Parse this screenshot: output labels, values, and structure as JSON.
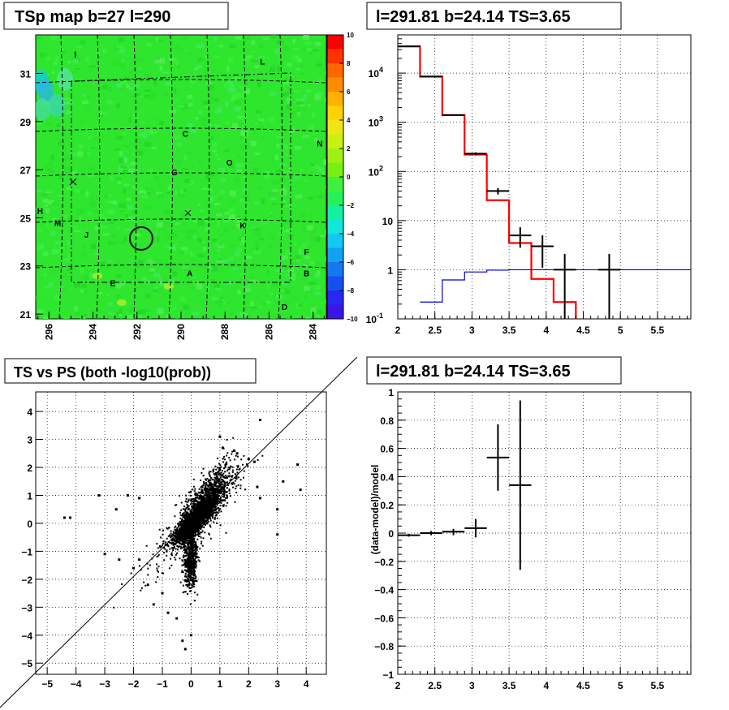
{
  "chart_data": [
    {
      "type": "heatmap",
      "title": "TSp map b=27 l=290",
      "x_ticks": [
        "296",
        "294",
        "292",
        "290",
        "288",
        "286",
        "284"
      ],
      "y_ticks": [
        "21",
        "23",
        "25",
        "27",
        "29",
        "31"
      ],
      "xlim": [
        296.6,
        283.4
      ],
      "ylim": [
        20.8,
        32.6
      ],
      "zlim": [
        -10,
        10
      ],
      "colorbar_ticks": [
        "10",
        "8",
        "6",
        "4",
        "2",
        "0",
        "−2",
        "−4",
        "−6",
        "−8",
        "−10"
      ],
      "source_labels": [
        {
          "text": "I",
          "l": 294.8,
          "b": 31.8
        },
        {
          "text": "L",
          "l": 286.3,
          "b": 31.5
        },
        {
          "text": "C",
          "l": 289.8,
          "b": 28.5
        },
        {
          "text": "O",
          "l": 287.8,
          "b": 27.3
        },
        {
          "text": "N",
          "l": 283.7,
          "b": 28.1
        },
        {
          "text": "G",
          "l": 290.3,
          "b": 26.9
        },
        {
          "text": "H",
          "l": 296.4,
          "b": 25.3
        },
        {
          "text": "M",
          "l": 295.6,
          "b": 24.8
        },
        {
          "text": "J",
          "l": 294.3,
          "b": 24.3
        },
        {
          "text": "K",
          "l": 287.2,
          "b": 24.7
        },
        {
          "text": "F",
          "l": 284.3,
          "b": 23.6
        },
        {
          "text": "A",
          "l": 289.6,
          "b": 22.7
        },
        {
          "text": "B",
          "l": 284.3,
          "b": 22.7
        },
        {
          "text": "E",
          "l": 293.1,
          "b": 22.3
        },
        {
          "text": "D",
          "l": 285.3,
          "b": 21.3
        }
      ],
      "target": {
        "l": 291.81,
        "b": 24.14
      }
    },
    {
      "type": "line",
      "title": "l=291.81 b=24.14 TS=3.65",
      "x_ticks": [
        "2",
        "2.5",
        "3",
        "3.5",
        "4",
        "4.5",
        "5",
        "5.5"
      ],
      "y_ticks": [
        "10^-1",
        "1",
        "10",
        "10^2",
        "10^3",
        "10^4"
      ],
      "xlim": [
        2,
        5.95
      ],
      "ylim": [
        0.1,
        60000
      ],
      "log_y": true,
      "series": [
        {
          "kind": "step",
          "color": "#ff0000",
          "edges": [
            2.0,
            2.3,
            2.6,
            2.9,
            3.2,
            3.5,
            3.8,
            4.1,
            4.4
          ],
          "values": [
            35000,
            8500,
            1400,
            220,
            26,
            3.5,
            0.65,
            0.22,
            0.08
          ]
        },
        {
          "kind": "step",
          "color": "#0000cc",
          "edges": [
            2.3,
            2.6,
            2.9,
            3.2,
            3.5,
            3.8,
            4.1,
            4.4,
            4.7,
            5.0,
            5.3,
            5.95
          ],
          "values": [
            0.22,
            0.62,
            0.9,
            0.98,
            1.0,
            1.0,
            1.0,
            1.0,
            1.0,
            1.0,
            1.0
          ]
        },
        {
          "kind": "errorbar",
          "color": "#000000",
          "points": [
            {
              "x": 2.15,
              "y": 35000,
              "xerr": 0.15,
              "lo": 34000,
              "hi": 36000
            },
            {
              "x": 2.45,
              "y": 8500,
              "xerr": 0.15,
              "lo": 8300,
              "hi": 8700
            },
            {
              "x": 2.75,
              "y": 1400,
              "xerr": 0.15,
              "lo": 1360,
              "hi": 1440
            },
            {
              "x": 3.05,
              "y": 230,
              "xerr": 0.15,
              "lo": 215,
              "hi": 245
            },
            {
              "x": 3.35,
              "y": 40,
              "xerr": 0.15,
              "lo": 34,
              "hi": 46
            },
            {
              "x": 3.65,
              "y": 5,
              "xerr": 0.15,
              "lo": 2.8,
              "hi": 7.3
            },
            {
              "x": 3.95,
              "y": 3,
              "xerr": 0.15,
              "lo": 1.1,
              "hi": 5
            },
            {
              "x": 4.25,
              "y": 1,
              "xerr": 0.15,
              "lo": 0.1,
              "hi": 2.1
            },
            {
              "x": 4.85,
              "y": 1,
              "xerr": 0.15,
              "lo": 0.1,
              "hi": 2.1
            }
          ]
        }
      ]
    },
    {
      "type": "scatter",
      "title": "TS vs PS (both -log10(prob))",
      "x_ticks": [
        "−5",
        "−4",
        "−3",
        "−2",
        "−1",
        "0",
        "1",
        "2",
        "3",
        "4"
      ],
      "y_ticks": [
        "−5",
        "−4",
        "−3",
        "−2",
        "−1",
        "0",
        "1",
        "2",
        "3",
        "4"
      ],
      "xlim": [
        -5.4,
        4.7
      ],
      "ylim": [
        -5.4,
        4.7
      ],
      "diagonal": true,
      "outliers": [
        [
          -4.4,
          0.2
        ],
        [
          -4.2,
          0.2
        ],
        [
          -3.2,
          1.0
        ],
        [
          -3.0,
          -1.1
        ],
        [
          -2.6,
          0.5
        ],
        [
          -2.5,
          -1.3
        ],
        [
          -2.2,
          1.0
        ],
        [
          -2.0,
          -1.6
        ],
        [
          -1.8,
          0.9
        ],
        [
          -1.8,
          -1.3
        ],
        [
          -1.5,
          -2.2
        ],
        [
          -1.3,
          -2.9
        ],
        [
          -1.0,
          -2.5
        ],
        [
          -0.8,
          -3.2
        ],
        [
          -0.5,
          -3.4
        ],
        [
          -0.3,
          -4.2
        ],
        [
          -0.2,
          -4.5
        ],
        [
          0.0,
          -4.0
        ],
        [
          1.0,
          3.1
        ],
        [
          1.1,
          2.7
        ],
        [
          1.5,
          2.6
        ],
        [
          1.6,
          2.5
        ],
        [
          2.0,
          2.3
        ],
        [
          2.2,
          2.2
        ],
        [
          2.3,
          1.3
        ],
        [
          2.4,
          0.9
        ],
        [
          2.4,
          3.7
        ],
        [
          3.0,
          -0.4
        ],
        [
          3.0,
          0.5
        ],
        [
          3.2,
          1.5
        ],
        [
          3.7,
          2.1
        ],
        [
          3.8,
          1.2
        ]
      ]
    },
    {
      "type": "line",
      "title": "l=291.81 b=24.14 TS=3.65",
      "ylabel": "(data-model)/model",
      "x_ticks": [
        "2",
        "2.5",
        "3",
        "3.5",
        "4",
        "4.5",
        "5",
        "5.5"
      ],
      "y_ticks": [
        "−1",
        "−0.8",
        "−0.6",
        "−0.4",
        "−0.2",
        "0",
        "0.2",
        "0.4",
        "0.6",
        "0.8",
        "1"
      ],
      "xlim": [
        2,
        5.95
      ],
      "ylim": [
        -1,
        1
      ],
      "series": [
        {
          "kind": "errorbar",
          "color": "#000000",
          "points": [
            {
              "x": 2.15,
              "y": -0.015,
              "xerr": 0.15,
              "lo": -0.025,
              "hi": -0.005
            },
            {
              "x": 2.45,
              "y": 0.0,
              "xerr": 0.15,
              "lo": -0.015,
              "hi": 0.015
            },
            {
              "x": 2.75,
              "y": 0.01,
              "xerr": 0.15,
              "lo": -0.015,
              "hi": 0.03
            },
            {
              "x": 3.05,
              "y": 0.035,
              "xerr": 0.15,
              "lo": -0.03,
              "hi": 0.1
            },
            {
              "x": 3.35,
              "y": 0.535,
              "xerr": 0.15,
              "lo": 0.3,
              "hi": 0.77
            },
            {
              "x": 3.65,
              "y": 0.34,
              "xerr": 0.15,
              "lo": -0.26,
              "hi": 0.94
            }
          ]
        }
      ]
    }
  ]
}
